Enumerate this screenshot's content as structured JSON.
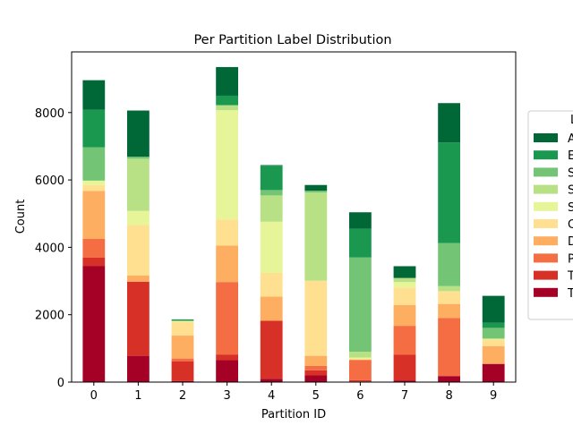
{
  "chart_data": {
    "type": "bar",
    "stacked": true,
    "title": "Per Partition Label Distribution",
    "xlabel": "Partition ID",
    "ylabel": "Count",
    "categories": [
      "0",
      "1",
      "2",
      "3",
      "4",
      "5",
      "6",
      "7",
      "8",
      "9"
    ],
    "ylim": [
      0,
      9800
    ],
    "yticks": [
      0,
      2000,
      4000,
      6000,
      8000
    ],
    "grid": false,
    "legend_position": "right (clipped at image edge)",
    "legend_title": "L",
    "series": [
      {
        "name": "T",
        "color": "#a50026",
        "values": [
          3450,
          780,
          30,
          650,
          100,
          200,
          20,
          50,
          180,
          540
        ]
      },
      {
        "name": "T",
        "color": "#d73027",
        "values": [
          250,
          2200,
          590,
          170,
          1720,
          150,
          40,
          760,
          0,
          0
        ]
      },
      {
        "name": "P",
        "color": "#f46d43",
        "values": [
          550,
          0,
          80,
          2150,
          0,
          130,
          600,
          860,
          1720,
          0
        ]
      },
      {
        "name": "D",
        "color": "#fdae61",
        "values": [
          1420,
          180,
          680,
          1080,
          720,
          300,
          0,
          620,
          420,
          530
        ]
      },
      {
        "name": "C",
        "color": "#fee090",
        "values": [
          180,
          1500,
          400,
          780,
          700,
          2230,
          30,
          520,
          380,
          190
        ]
      },
      {
        "name": "S",
        "color": "#e6f598",
        "values": [
          130,
          420,
          40,
          3240,
          1520,
          0,
          40,
          160,
          0,
          30
        ]
      },
      {
        "name": "S",
        "color": "#b8e186",
        "values": [
          0,
          1550,
          0,
          150,
          780,
          2620,
          170,
          120,
          150,
          0
        ]
      },
      {
        "name": "S",
        "color": "#74c476",
        "values": [
          990,
          60,
          0,
          0,
          160,
          50,
          2800,
          0,
          1280,
          320
        ]
      },
      {
        "name": "E",
        "color": "#1a9850",
        "values": [
          1110,
          0,
          40,
          280,
          720,
          0,
          850,
          0,
          2980,
          150
        ]
      },
      {
        "name": "A",
        "color": "#006837",
        "values": [
          880,
          1370,
          0,
          850,
          20,
          170,
          490,
          350,
          1170,
          800
        ]
      }
    ]
  }
}
